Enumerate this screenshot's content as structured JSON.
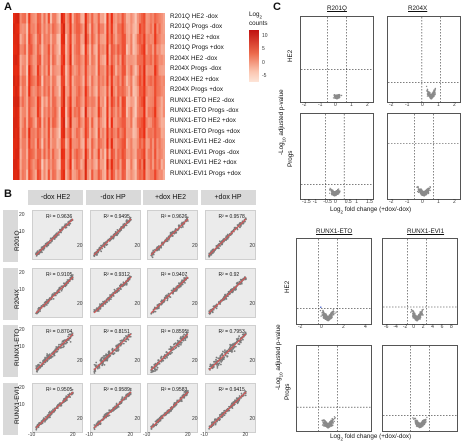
{
  "panels": {
    "a": "A",
    "b": "B",
    "c": "C"
  },
  "heatmap": {
    "rows": [
      "R201Q HE2 -dox",
      "R201Q Progs -dox",
      "R201Q HE2 +dox",
      "R201Q Progs +dox",
      "R204X HE2 -dox",
      "R204X Progs -dox",
      "R204X HE2 +dox",
      "R204X Progs +dox",
      "RUNX1-ETO HE2 -dox",
      "RUNX1-ETO Progs -dox",
      "RUNX1-ETO HE2 +dox",
      "RUNX1-ETO Progs +dox",
      "RUNX1-EVI1 HE2 -dox",
      "RUNX1-EVI1 Progs -dox",
      "RUNX1-EVI1 HE2 +dox",
      "RUNX1-EVI1 Progs +dox"
    ],
    "legend_title_line1": "Log",
    "legend_title_sub": "2",
    "legend_title_line2": "counts",
    "legend_ticks": [
      "10",
      "5",
      "0",
      "-5"
    ],
    "colors": {
      "low": "#fde0d2",
      "mid": "#f08060",
      "high": "#c01010"
    }
  },
  "scatter": {
    "columns": [
      "-dox HE2",
      "-dox HP",
      "+dox HE2",
      "+dox HP"
    ],
    "rows": [
      "R201Q",
      "R204X",
      "RUNX1-ETO",
      "RUNX1-EVI1"
    ],
    "r2": [
      [
        "R² = 0.9636",
        "R² = 0.9495",
        "R² = 0.9626",
        "R² = 0.9578"
      ],
      [
        "R² = 0.9105",
        "R² = 0.9312",
        "R² = 0.9407",
        "R² = 0.92"
      ],
      [
        "R² = 0.8704",
        "R² = 0.8151",
        "R² = 0.8595",
        "R² = 0.7953"
      ],
      [
        "R² = 0.9505",
        "R² = 0.9589",
        "R² = 0.9583",
        "R² = 0.9415"
      ]
    ],
    "y_tick_top": "20",
    "y_tick_mid": "10",
    "x_tick_20": "20",
    "bottom_ticks": [
      "-10",
      "-10",
      "-10",
      "-10"
    ],
    "top_ticks": [
      "20",
      "20",
      "20",
      "20"
    ],
    "point_color": "#7a7a7a",
    "line_color": "#e05050"
  },
  "volcano_top": {
    "col_titles": [
      "R201Q",
      "R204X"
    ],
    "row_labels": [
      "HE2",
      "Progs"
    ],
    "ylabel_prefix": "-Log",
    "ylabel_sub": "10",
    "ylabel_suffix": " adjusted p-value",
    "xlabel_prefix": "Log",
    "xlabel_sub": "2",
    "xlabel_suffix": " fold change (+dox/-dox)",
    "x_ticks_top_left": [
      "-2",
      "-1",
      "0",
      "1",
      "2"
    ],
    "x_ticks_top_right": [
      "-2",
      "-1",
      "0",
      "1",
      "2"
    ],
    "x_ticks_bottom_left": [
      "-1.5",
      "-1",
      "-0.5",
      "0",
      "0.5",
      "1",
      "1.5"
    ],
    "x_ticks_bottom_right": [
      "-2",
      "-1",
      "0",
      "1",
      "2"
    ]
  },
  "volcano_bottom": {
    "col_titles": [
      "RUNX1-ETO",
      "RUNX1-EVI1"
    ],
    "row_labels": [
      "HE2",
      "Progs"
    ],
    "x_ticks_left": [
      "-2",
      "0",
      "2",
      "4"
    ],
    "x_ticks_right": [
      "-6",
      "-4",
      "-2",
      "0",
      "2",
      "4",
      "6",
      "8"
    ]
  },
  "volcano_colors": {
    "up": "#e02020",
    "down": "#2040c0",
    "ns": "#8a8a8a"
  }
}
